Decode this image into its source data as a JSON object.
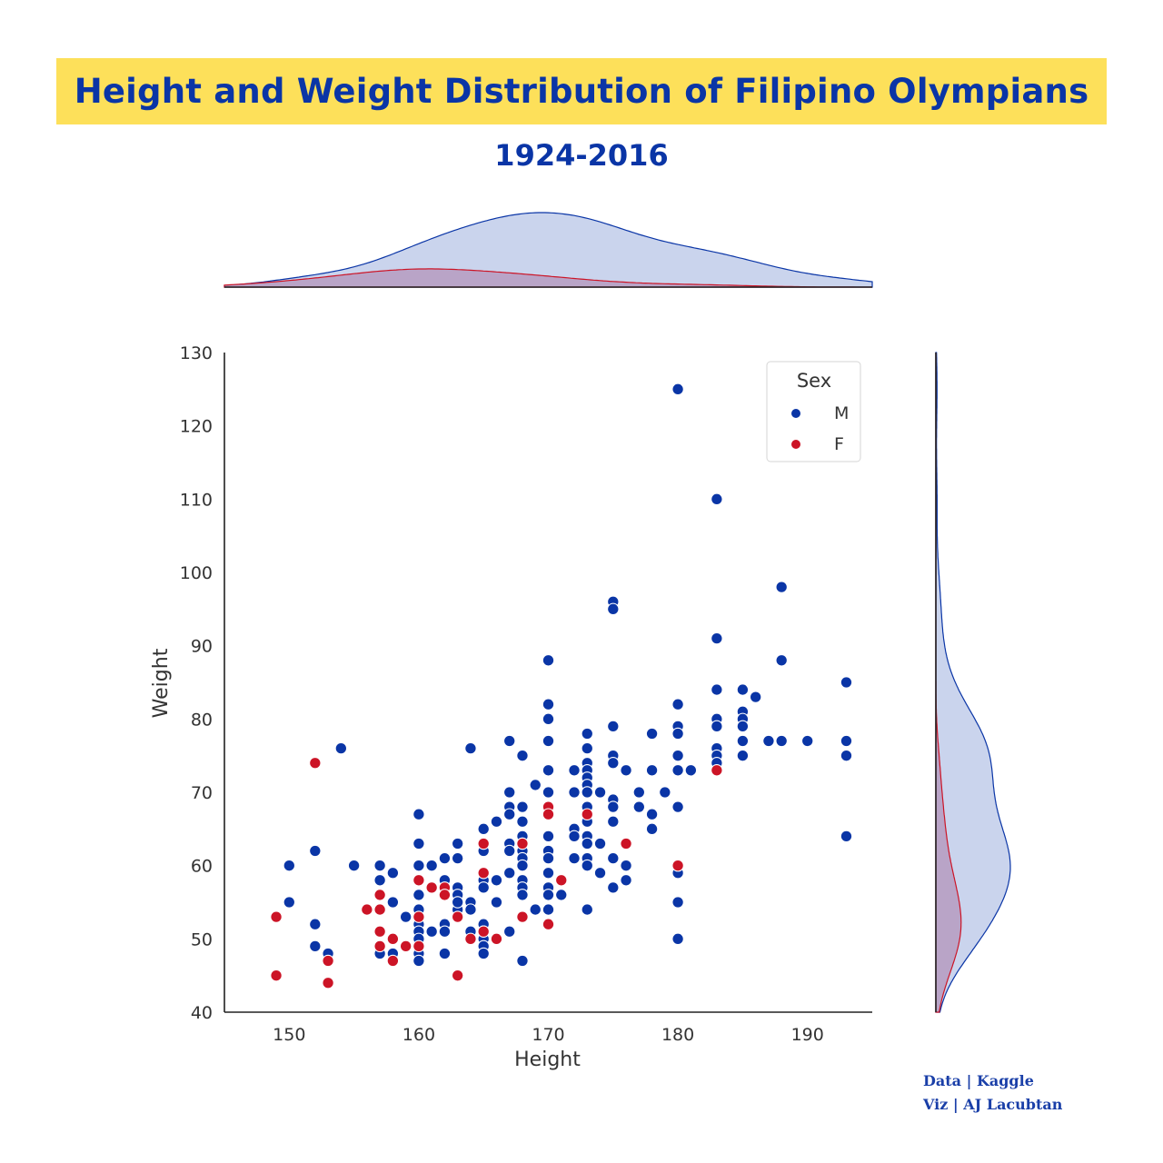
{
  "title": "Height and Weight Distribution of Filipino Olympians",
  "subtitle": "1924-2016",
  "credits": {
    "data": "Data | Kaggle",
    "viz": "Viz | AJ Lacubtan"
  },
  "colors": {
    "title_band": "#fde05a",
    "title_text": "#0a35a6",
    "M": "#0a35a6",
    "F": "#cc1426",
    "kde_M_fill": "#c1cdea",
    "kde_F_fill": "#b69bbf",
    "axis": "#222222"
  },
  "chart_data": {
    "type": "scatter",
    "xlabel": "Height",
    "ylabel": "Weight",
    "xlim": [
      145,
      195
    ],
    "ylim": [
      40,
      130
    ],
    "xticks": [
      "150",
      "160",
      "170",
      "180",
      "190"
    ],
    "yticks": [
      "40",
      "50",
      "60",
      "70",
      "80",
      "90",
      "100",
      "110",
      "120",
      "130"
    ],
    "grid": false,
    "legend": {
      "title": "Sex",
      "position": "top-right",
      "entries": [
        "M",
        "F"
      ]
    },
    "marginals": {
      "top": "kde of Height by Sex",
      "right": "kde of Weight by Sex"
    },
    "series": [
      {
        "name": "M",
        "points": [
          [
            150,
            60
          ],
          [
            150,
            55
          ],
          [
            152,
            62
          ],
          [
            152,
            52
          ],
          [
            152,
            49
          ],
          [
            153,
            48
          ],
          [
            154,
            76
          ],
          [
            155,
            60
          ],
          [
            157,
            60
          ],
          [
            157,
            58
          ],
          [
            157,
            48
          ],
          [
            158,
            59
          ],
          [
            158,
            55
          ],
          [
            158,
            48
          ],
          [
            159,
            53
          ],
          [
            160,
            67
          ],
          [
            160,
            63
          ],
          [
            160,
            60
          ],
          [
            160,
            56
          ],
          [
            160,
            54
          ],
          [
            160,
            52
          ],
          [
            160,
            51
          ],
          [
            160,
            50
          ],
          [
            160,
            48
          ],
          [
            160,
            47
          ],
          [
            161,
            60
          ],
          [
            161,
            51
          ],
          [
            162,
            61
          ],
          [
            162,
            58
          ],
          [
            162,
            52
          ],
          [
            162,
            51
          ],
          [
            162,
            48
          ],
          [
            163,
            63
          ],
          [
            163,
            61
          ],
          [
            163,
            57
          ],
          [
            163,
            56
          ],
          [
            163,
            54
          ],
          [
            163,
            55
          ],
          [
            164,
            76
          ],
          [
            164,
            55
          ],
          [
            164,
            54
          ],
          [
            164,
            51
          ],
          [
            165,
            65
          ],
          [
            165,
            62
          ],
          [
            165,
            58
          ],
          [
            165,
            57
          ],
          [
            165,
            52
          ],
          [
            165,
            51
          ],
          [
            165,
            50
          ],
          [
            165,
            49
          ],
          [
            165,
            48
          ],
          [
            166,
            66
          ],
          [
            166,
            58
          ],
          [
            166,
            55
          ],
          [
            167,
            77
          ],
          [
            167,
            70
          ],
          [
            167,
            68
          ],
          [
            167,
            67
          ],
          [
            167,
            63
          ],
          [
            167,
            62
          ],
          [
            167,
            59
          ],
          [
            167,
            51
          ],
          [
            168,
            75
          ],
          [
            168,
            68
          ],
          [
            168,
            66
          ],
          [
            168,
            64
          ],
          [
            168,
            63
          ],
          [
            168,
            62
          ],
          [
            168,
            61
          ],
          [
            168,
            60
          ],
          [
            168,
            58
          ],
          [
            168,
            57
          ],
          [
            168,
            56
          ],
          [
            168,
            47
          ],
          [
            169,
            71
          ],
          [
            169,
            54
          ],
          [
            170,
            88
          ],
          [
            170,
            82
          ],
          [
            170,
            80
          ],
          [
            170,
            77
          ],
          [
            170,
            73
          ],
          [
            170,
            70
          ],
          [
            170,
            67
          ],
          [
            170,
            64
          ],
          [
            170,
            62
          ],
          [
            170,
            61
          ],
          [
            170,
            59
          ],
          [
            170,
            57
          ],
          [
            170,
            56
          ],
          [
            170,
            54
          ],
          [
            171,
            56
          ],
          [
            172,
            73
          ],
          [
            172,
            70
          ],
          [
            172,
            65
          ],
          [
            172,
            64
          ],
          [
            172,
            61
          ],
          [
            173,
            78
          ],
          [
            173,
            76
          ],
          [
            173,
            74
          ],
          [
            173,
            73
          ],
          [
            173,
            72
          ],
          [
            173,
            71
          ],
          [
            173,
            70
          ],
          [
            173,
            68
          ],
          [
            173,
            66
          ],
          [
            173,
            64
          ],
          [
            173,
            63
          ],
          [
            173,
            61
          ],
          [
            173,
            60
          ],
          [
            173,
            54
          ],
          [
            174,
            70
          ],
          [
            174,
            63
          ],
          [
            174,
            59
          ],
          [
            175,
            96
          ],
          [
            175,
            95
          ],
          [
            175,
            79
          ],
          [
            175,
            75
          ],
          [
            175,
            74
          ],
          [
            175,
            69
          ],
          [
            175,
            68
          ],
          [
            175,
            66
          ],
          [
            175,
            61
          ],
          [
            175,
            57
          ],
          [
            176,
            73
          ],
          [
            176,
            60
          ],
          [
            176,
            58
          ],
          [
            177,
            70
          ],
          [
            177,
            68
          ],
          [
            178,
            78
          ],
          [
            178,
            73
          ],
          [
            178,
            67
          ],
          [
            178,
            65
          ],
          [
            179,
            70
          ],
          [
            180,
            125
          ],
          [
            180,
            82
          ],
          [
            180,
            79
          ],
          [
            180,
            78
          ],
          [
            180,
            75
          ],
          [
            180,
            73
          ],
          [
            180,
            68
          ],
          [
            180,
            60
          ],
          [
            180,
            59
          ],
          [
            180,
            55
          ],
          [
            180,
            50
          ],
          [
            181,
            73
          ],
          [
            183,
            110
          ],
          [
            183,
            91
          ],
          [
            183,
            84
          ],
          [
            183,
            80
          ],
          [
            183,
            79
          ],
          [
            183,
            76
          ],
          [
            183,
            75
          ],
          [
            183,
            74
          ],
          [
            185,
            84
          ],
          [
            185,
            81
          ],
          [
            185,
            80
          ],
          [
            185,
            79
          ],
          [
            185,
            77
          ],
          [
            185,
            75
          ],
          [
            186,
            83
          ],
          [
            187,
            77
          ],
          [
            188,
            98
          ],
          [
            188,
            88
          ],
          [
            188,
            77
          ],
          [
            190,
            77
          ],
          [
            193,
            85
          ],
          [
            193,
            77
          ],
          [
            193,
            75
          ],
          [
            193,
            64
          ]
        ]
      },
      {
        "name": "F",
        "points": [
          [
            149,
            53
          ],
          [
            149,
            45
          ],
          [
            152,
            74
          ],
          [
            153,
            47
          ],
          [
            153,
            44
          ],
          [
            156,
            54
          ],
          [
            157,
            56
          ],
          [
            157,
            54
          ],
          [
            157,
            51
          ],
          [
            157,
            49
          ],
          [
            158,
            50
          ],
          [
            158,
            47
          ],
          [
            159,
            49
          ],
          [
            160,
            58
          ],
          [
            160,
            53
          ],
          [
            160,
            49
          ],
          [
            161,
            57
          ],
          [
            162,
            57
          ],
          [
            162,
            56
          ],
          [
            163,
            53
          ],
          [
            163,
            45
          ],
          [
            164,
            50
          ],
          [
            165,
            63
          ],
          [
            165,
            59
          ],
          [
            165,
            51
          ],
          [
            166,
            50
          ],
          [
            168,
            63
          ],
          [
            168,
            53
          ],
          [
            170,
            68
          ],
          [
            170,
            67
          ],
          [
            170,
            52
          ],
          [
            171,
            58
          ],
          [
            173,
            67
          ],
          [
            176,
            63
          ],
          [
            180,
            60
          ],
          [
            183,
            73
          ]
        ]
      }
    ]
  }
}
